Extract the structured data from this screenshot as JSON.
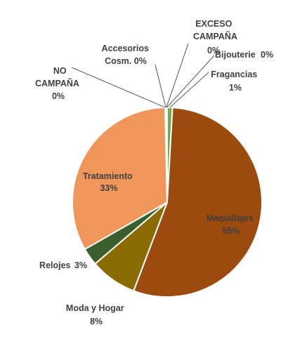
{
  "chart_data": {
    "type": "pie",
    "start_angle_deg": 0,
    "direction": "clockwise",
    "slices": [
      {
        "id": "fragancias",
        "label": "Fragancias",
        "value": 0.9,
        "display": "1%",
        "color": "#70AD47"
      },
      {
        "id": "maquillajes",
        "label": "Maquillajes",
        "value": 55,
        "display": "55%",
        "color": "#9C4A0D"
      },
      {
        "id": "moda-hogar",
        "label": "Moda y Hogar",
        "value": 8,
        "display": "8%",
        "color": "#8B6A00"
      },
      {
        "id": "relojes",
        "label": "Relojes",
        "value": 3,
        "display": "3%",
        "color": "#3A5E2C"
      },
      {
        "id": "tratamiento",
        "label": "Tratamiento",
        "value": 33,
        "display": "33%",
        "color": "#F0965A"
      },
      {
        "id": "no-campana",
        "label": "NO CAMPAÑA",
        "value": 0.05,
        "display": "0%",
        "color": "#BDBDBD"
      },
      {
        "id": "accesorios",
        "label": "Accesorios Cosm.",
        "value": 0.15,
        "display": "0%",
        "color": "#D9D9D9"
      },
      {
        "id": "exceso",
        "label": "EXCESO CAMPAÑA",
        "value": 0.05,
        "display": "0%",
        "color": "#A5A5A5"
      },
      {
        "id": "bijouterie",
        "label": "Bijouterie",
        "value": 0.1,
        "display": "0%",
        "color": "#C9C9C9"
      }
    ]
  }
}
